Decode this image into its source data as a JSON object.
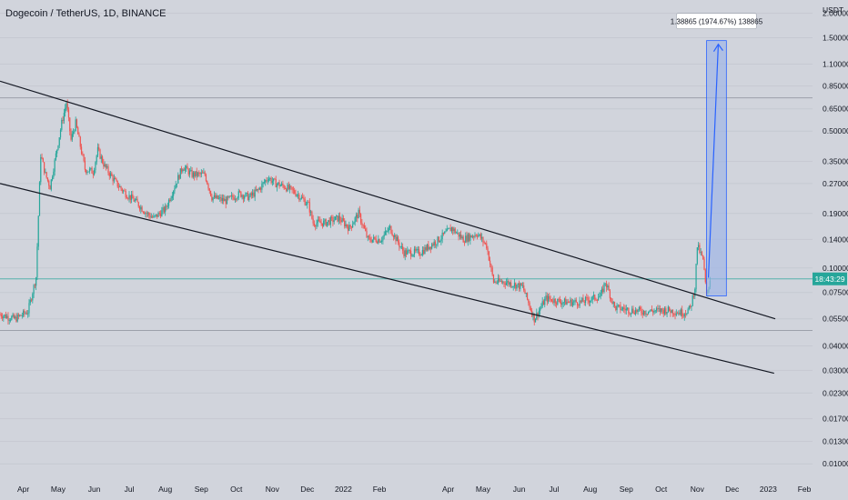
{
  "chart_data": {
    "type": "candlestick",
    "title": "Dogecoin / TetherUS, 1D, BINANCE",
    "currency_label": "USDT",
    "y_scale": "log",
    "ylim": [
      0.0095,
      2.1
    ],
    "xlim": [
      "2021-03-12",
      "2023-02-08"
    ],
    "grid": true,
    "y_ticks": [
      "2.00000",
      "1.50000",
      "1.10000",
      "0.85000",
      "0.65000",
      "0.50000",
      "0.35000",
      "0.27000",
      "0.19000",
      "0.14000",
      "0.10000",
      "0.07500",
      "0.05500",
      "0.04000",
      "0.03000",
      "0.02300",
      "0.01700",
      "0.01300",
      "0.01000"
    ],
    "x_ticks": [
      {
        "label": "Apr",
        "date": "2021-04-01"
      },
      {
        "label": "May",
        "date": "2021-05-01"
      },
      {
        "label": "Jun",
        "date": "2021-06-01"
      },
      {
        "label": "Jul",
        "date": "2021-07-01"
      },
      {
        "label": "Aug",
        "date": "2021-08-01"
      },
      {
        "label": "Sep",
        "date": "2021-09-01"
      },
      {
        "label": "Oct",
        "date": "2021-10-01"
      },
      {
        "label": "Nov",
        "date": "2021-11-01"
      },
      {
        "label": "Dec",
        "date": "2021-12-01"
      },
      {
        "label": "2022",
        "date": "2022-01-01"
      },
      {
        "label": "Feb",
        "date": "2022-02-01"
      },
      {
        "label": "Apr",
        "date": "2022-04-01"
      },
      {
        "label": "May",
        "date": "2022-05-01"
      },
      {
        "label": "Jun",
        "date": "2022-06-01"
      },
      {
        "label": "Jul",
        "date": "2022-07-01"
      },
      {
        "label": "Aug",
        "date": "2022-08-01"
      },
      {
        "label": "Sep",
        "date": "2022-09-01"
      },
      {
        "label": "Oct",
        "date": "2022-10-01"
      },
      {
        "label": "Nov",
        "date": "2022-11-01"
      },
      {
        "label": "Dec",
        "date": "2022-12-01"
      },
      {
        "label": "2023",
        "date": "2023-01-01"
      },
      {
        "label": "Feb",
        "date": "2023-02-01"
      }
    ],
    "price_series": [
      {
        "date": "2021-03-12",
        "close": 0.058
      },
      {
        "date": "2021-03-25",
        "close": 0.055
      },
      {
        "date": "2021-04-05",
        "close": 0.06
      },
      {
        "date": "2021-04-12",
        "close": 0.09
      },
      {
        "date": "2021-04-16",
        "close": 0.38
      },
      {
        "date": "2021-04-20",
        "close": 0.3
      },
      {
        "date": "2021-04-24",
        "close": 0.26
      },
      {
        "date": "2021-04-28",
        "close": 0.35
      },
      {
        "date": "2021-05-04",
        "close": 0.55
      },
      {
        "date": "2021-05-08",
        "close": 0.7
      },
      {
        "date": "2021-05-12",
        "close": 0.45
      },
      {
        "date": "2021-05-16",
        "close": 0.55
      },
      {
        "date": "2021-05-20",
        "close": 0.42
      },
      {
        "date": "2021-05-24",
        "close": 0.32
      },
      {
        "date": "2021-05-31",
        "close": 0.31
      },
      {
        "date": "2021-06-04",
        "close": 0.4
      },
      {
        "date": "2021-06-10",
        "close": 0.33
      },
      {
        "date": "2021-06-20",
        "close": 0.27
      },
      {
        "date": "2021-06-28",
        "close": 0.24
      },
      {
        "date": "2021-07-06",
        "close": 0.22
      },
      {
        "date": "2021-07-16",
        "close": 0.19
      },
      {
        "date": "2021-07-22",
        "close": 0.18
      },
      {
        "date": "2021-08-01",
        "close": 0.2
      },
      {
        "date": "2021-08-10",
        "close": 0.27
      },
      {
        "date": "2021-08-16",
        "close": 0.33
      },
      {
        "date": "2021-08-24",
        "close": 0.3
      },
      {
        "date": "2021-09-04",
        "close": 0.3
      },
      {
        "date": "2021-09-10",
        "close": 0.23
      },
      {
        "date": "2021-09-22",
        "close": 0.22
      },
      {
        "date": "2021-10-04",
        "close": 0.24
      },
      {
        "date": "2021-10-12",
        "close": 0.23
      },
      {
        "date": "2021-10-20",
        "close": 0.25
      },
      {
        "date": "2021-10-28",
        "close": 0.29
      },
      {
        "date": "2021-11-04",
        "close": 0.27
      },
      {
        "date": "2021-11-12",
        "close": 0.26
      },
      {
        "date": "2021-11-22",
        "close": 0.24
      },
      {
        "date": "2021-12-02",
        "close": 0.21
      },
      {
        "date": "2021-12-06",
        "close": 0.17
      },
      {
        "date": "2021-12-16",
        "close": 0.17
      },
      {
        "date": "2021-12-28",
        "close": 0.18
      },
      {
        "date": "2022-01-06",
        "close": 0.16
      },
      {
        "date": "2022-01-14",
        "close": 0.19
      },
      {
        "date": "2022-01-22",
        "close": 0.14
      },
      {
        "date": "2022-02-02",
        "close": 0.14
      },
      {
        "date": "2022-02-10",
        "close": 0.16
      },
      {
        "date": "2022-02-22",
        "close": 0.12
      },
      {
        "date": "2022-03-08",
        "close": 0.12
      },
      {
        "date": "2022-03-24",
        "close": 0.14
      },
      {
        "date": "2022-04-04",
        "close": 0.16
      },
      {
        "date": "2022-04-14",
        "close": 0.14
      },
      {
        "date": "2022-04-26",
        "close": 0.15
      },
      {
        "date": "2022-05-04",
        "close": 0.13
      },
      {
        "date": "2022-05-10",
        "close": 0.085
      },
      {
        "date": "2022-05-20",
        "close": 0.085
      },
      {
        "date": "2022-06-04",
        "close": 0.08
      },
      {
        "date": "2022-06-14",
        "close": 0.055
      },
      {
        "date": "2022-06-24",
        "close": 0.07
      },
      {
        "date": "2022-07-08",
        "close": 0.067
      },
      {
        "date": "2022-07-24",
        "close": 0.067
      },
      {
        "date": "2022-08-10",
        "close": 0.072
      },
      {
        "date": "2022-08-14",
        "close": 0.085
      },
      {
        "date": "2022-08-22",
        "close": 0.063
      },
      {
        "date": "2022-09-04",
        "close": 0.061
      },
      {
        "date": "2022-09-16",
        "close": 0.06
      },
      {
        "date": "2022-10-06",
        "close": 0.061
      },
      {
        "date": "2022-10-20",
        "close": 0.059
      },
      {
        "date": "2022-10-26",
        "close": 0.062
      },
      {
        "date": "2022-10-30",
        "close": 0.08
      },
      {
        "date": "2022-11-01",
        "close": 0.13
      },
      {
        "date": "2022-11-06",
        "close": 0.11
      },
      {
        "date": "2022-11-09",
        "close": 0.072
      },
      {
        "date": "2022-11-12",
        "close": 0.088
      }
    ],
    "current_price": {
      "value": 0.088,
      "label": "18:43:29"
    },
    "channel": {
      "upper": {
        "from": {
          "date": "2021-03-12",
          "value": 0.9
        },
        "to": {
          "date": "2023-01-07",
          "value": 0.055
        }
      },
      "lower": {
        "from": {
          "date": "2021-03-12",
          "value": 0.27
        },
        "to": {
          "date": "2023-01-06",
          "value": 0.029
        }
      }
    },
    "horizontal_lines": [
      0.74,
      0.088,
      0.048
    ],
    "projection": {
      "start_date": "2022-11-09",
      "end_date": "2022-11-26",
      "low": 0.072,
      "high": 1.45,
      "label": "1.38865 (1974.67%) 138865"
    },
    "colors": {
      "background": "#d1d4dc",
      "bull": "#26a69a",
      "bear": "#ef5350",
      "trendline": "#131722",
      "hline": "#9ca0aa",
      "current_line": "#26a69a",
      "projection_fill": "#9db4e6",
      "projection_edge": "#2962ff"
    }
  }
}
